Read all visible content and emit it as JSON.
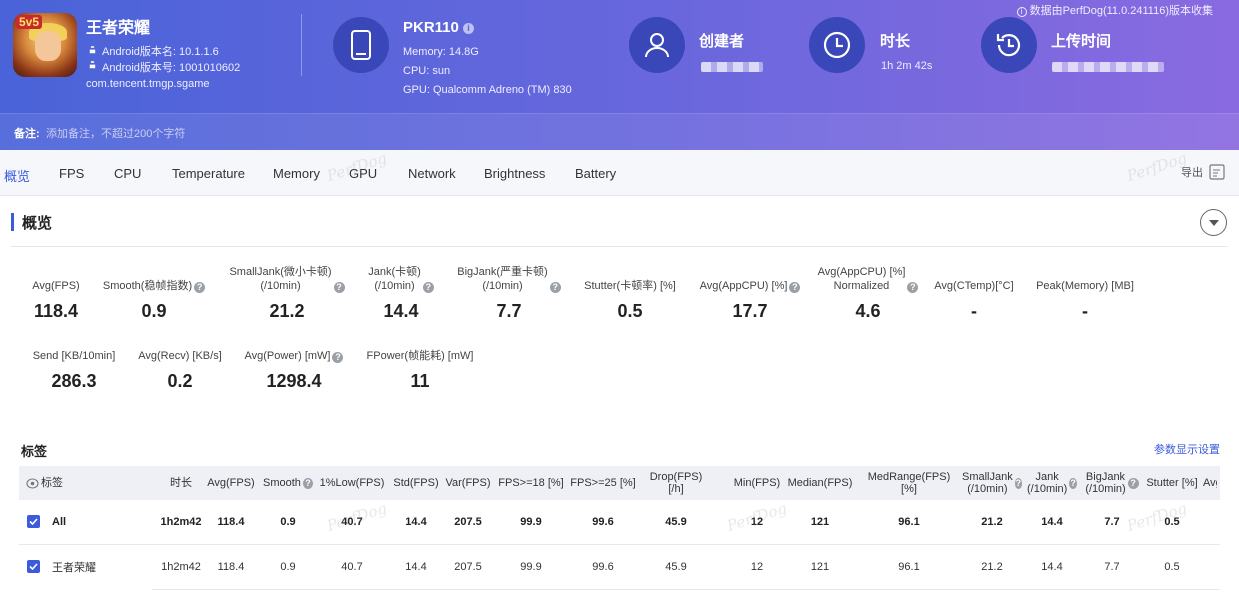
{
  "header": {
    "app_name": "王者荣耀",
    "app_icon_badge": "5v5",
    "android_version_name": "Android版本名: 10.1.1.6",
    "android_version_code": "Android版本号: 1001010602",
    "package": "com.tencent.tmgp.sgame",
    "device": {
      "name": "PKR110",
      "memory": "Memory: 14.8G",
      "cpu": "CPU: sun",
      "gpu": "GPU: Qualcomm Adreno (TM) 830"
    },
    "creator_label": "创建者",
    "duration_label": "时长",
    "duration_value": "1h 2m 42s",
    "upload_label": "上传时间",
    "version_note": "数据由PerfDog(11.0.241116)版本收集",
    "note_label": "备注:",
    "note_placeholder": "添加备注，不超过200个字符",
    "info_glyph": "i"
  },
  "tabs": [
    "概览",
    "FPS",
    "CPU",
    "Temperature",
    "Memory",
    "GPU",
    "Network",
    "Brightness",
    "Battery"
  ],
  "active_tab": "概览",
  "export_label": "导出",
  "watermark": "PerfDog",
  "overview": {
    "title": "概览",
    "help_glyph": "?",
    "metrics_row1": [
      {
        "label": "Avg(FPS)",
        "value": "118.4",
        "help": false
      },
      {
        "label": "Smooth(稳帧指数)",
        "value": "0.9",
        "help": true
      },
      {
        "label": "SmallJank(微小卡顿)\n(/10min)",
        "value": "21.2",
        "help": true
      },
      {
        "label": "Jank(卡顿)\n(/10min)",
        "value": "14.4",
        "help": true
      },
      {
        "label": "BigJank(严重卡顿)\n(/10min)",
        "value": "7.7",
        "help": true
      },
      {
        "label": "Stutter(卡顿率) [%]",
        "value": "0.5",
        "help": false
      },
      {
        "label": "Avg(AppCPU) [%]",
        "value": "17.7",
        "help": true
      },
      {
        "label": "Avg(AppCPU) [%]\nNormalized",
        "value": "4.6",
        "help": true
      },
      {
        "label": "Avg(CTemp)[°C]",
        "value": "-",
        "help": false
      },
      {
        "label": "Peak(Memory) [MB]",
        "value": "-",
        "help": false
      }
    ],
    "metrics_row2": [
      {
        "label": "Send [KB/10min]",
        "value": "286.3",
        "help": false
      },
      {
        "label": "Avg(Recv) [KB/s]",
        "value": "0.2",
        "help": false
      },
      {
        "label": "Avg(Power) [mW]",
        "value": "1298.4",
        "help": true
      },
      {
        "label": "FPower(帧能耗) [mW]",
        "value": "11",
        "help": false
      }
    ]
  },
  "tags": {
    "title": "标签",
    "param_settings": "参数显示设置",
    "columns": [
      "标签",
      "时长",
      "Avg(FPS)",
      "Smooth",
      "1%Low(FPS)",
      "Std(FPS)",
      "Var(FPS)",
      "FPS>=18 [%]",
      "FPS>=25 [%]",
      "Drop(FPS) [/h]",
      "Min(FPS)",
      "Median(FPS)",
      "MedRange(FPS)[%]",
      "SmallJank\n(/10min)",
      "Jank\n(/10min)",
      "BigJank\n(/10min)",
      "Stutter [%]",
      "Avg"
    ],
    "rows": [
      {
        "checked": true,
        "cells": [
          "All",
          "1h2m42",
          "118.4",
          "0.9",
          "40.7",
          "14.4",
          "207.5",
          "99.9",
          "99.6",
          "45.9",
          "12",
          "121",
          "96.1",
          "21.2",
          "14.4",
          "7.7",
          "0.5",
          ""
        ]
      },
      {
        "checked": true,
        "cells": [
          "王者荣耀",
          "1h2m42",
          "118.4",
          "0.9",
          "40.7",
          "14.4",
          "207.5",
          "99.9",
          "99.6",
          "45.9",
          "12",
          "121",
          "96.1",
          "21.2",
          "14.4",
          "7.7",
          "0.5",
          ""
        ]
      }
    ]
  },
  "colors": {
    "accent": "#3b5bdb",
    "header_start": "#4a63d8",
    "header_end": "#8a6ae0",
    "icon_circle": "#3a47b8"
  }
}
